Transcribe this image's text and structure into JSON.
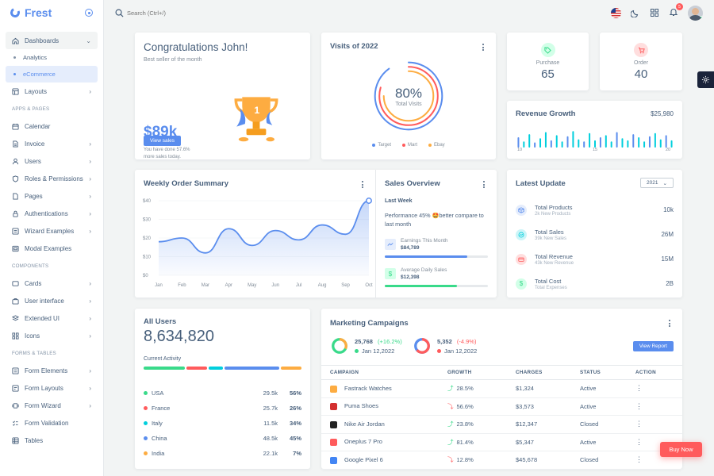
{
  "brand": {
    "name": "Frest"
  },
  "search": {
    "placeholder": "Search (Ctrl+/)"
  },
  "notifications": {
    "count": "5"
  },
  "sidebar": {
    "dashboards": "Dashboards",
    "analytics": "Analytics",
    "ecommerce": "eCommerce",
    "layouts": "Layouts",
    "head_apps": "APPS & PAGES",
    "calendar": "Calendar",
    "invoice": "Invoice",
    "users": "Users",
    "roles": "Roles & Permissions",
    "pages": "Pages",
    "auth": "Authentications",
    "wizard": "Wizard Examples",
    "modal": "Modal Examples",
    "head_components": "COMPONENTS",
    "cards": "Cards",
    "ui": "User interface",
    "extended": "Extended UI",
    "icons": "Icons",
    "head_forms": "FORMS & TABLES",
    "form_elements": "Form Elements",
    "form_layouts": "Form Layouts",
    "form_wizard": "Form Wizard",
    "form_validation": "Form Validation",
    "tables": "Tables"
  },
  "congrats": {
    "title": "Congratulations John!",
    "subtitle": "Best seller of the month",
    "amount": "$89k",
    "note1": "You have done 57.6%",
    "note2": "more sales today.",
    "button": "View sales"
  },
  "visits": {
    "title": "Visits of 2022",
    "percent": "80%",
    "label": "Total Visits",
    "legend": [
      {
        "name": "Target",
        "color": "#5a8dee"
      },
      {
        "name": "Mart",
        "color": "#ff5b5c"
      },
      {
        "name": "Ebay",
        "color": "#fdac41"
      }
    ]
  },
  "purchase": {
    "label": "Purchase",
    "value": "65"
  },
  "order": {
    "label": "Order",
    "value": "40"
  },
  "revenue": {
    "title": "Revenue Growth",
    "value": "$25,980",
    "ticks": [
      "10",
      "15",
      "20"
    ],
    "bars": [
      0.5,
      0.3,
      0.65,
      0.25,
      0.45,
      0.75,
      0.35,
      0.6,
      0.3,
      0.55,
      0.8,
      0.4,
      0.3,
      0.7,
      0.35,
      0.5,
      0.6,
      0.3,
      0.75,
      0.45,
      0.35,
      0.65,
      0.5,
      0.3,
      0.55,
      0.7,
      0.4,
      0.6,
      0.35
    ],
    "accent_colors": [
      "#00cfdd",
      "#5a8dee"
    ]
  },
  "weekly": {
    "title": "Weekly Order Summary",
    "chart_data": {
      "type": "area",
      "categories": [
        "Jan",
        "Feb",
        "Mar",
        "Apr",
        "May",
        "Jun",
        "Jul",
        "Aug",
        "Sep",
        "Oct"
      ],
      "values": [
        18,
        20,
        12,
        25,
        16,
        24,
        19,
        27,
        22,
        40
      ],
      "y_ticks": [
        "$40",
        "$30",
        "$20",
        "$10",
        "$0"
      ],
      "ylim": [
        0,
        40
      ]
    }
  },
  "sales_overview": {
    "title": "Sales Overview",
    "period": "Last Week",
    "text": "Performance 45% 🤩better compare to last month",
    "items": [
      {
        "label": "Earnings This Month",
        "value": "$84,789",
        "progress": 0.8,
        "color": "#5a8dee"
      },
      {
        "label": "Average Daily Sales",
        "value": "$12,398",
        "progress": 0.7,
        "color": "#39da8a"
      }
    ]
  },
  "latest": {
    "title": "Latest Update",
    "year": "2021",
    "items": [
      {
        "title": "Total Products",
        "sub": "2k New Products",
        "value": "10k",
        "color": "#5a8dee",
        "bg": "#e5edfc",
        "icon": "box-icon"
      },
      {
        "title": "Total Sales",
        "sub": "39k New Sales",
        "value": "26M",
        "color": "#00cfdd",
        "bg": "#ccf5f8",
        "icon": "chart-icon"
      },
      {
        "title": "Total Revenue",
        "sub": "43k New Revenue",
        "value": "15M",
        "color": "#ff5b5c",
        "bg": "#ffdede",
        "icon": "credit-card-icon"
      },
      {
        "title": "Total Cost",
        "sub": "Total Expenses",
        "value": "2B",
        "color": "#39da8a",
        "bg": "#d2ffe8",
        "icon": "dollar-icon"
      }
    ]
  },
  "all_users": {
    "title": "All Users",
    "total": "8,634,820",
    "activity": "Current Activity",
    "bars": [
      {
        "w": 0.3,
        "c": "#39da8a"
      },
      {
        "w": 0.15,
        "c": "#ff5b5c"
      },
      {
        "w": 0.1,
        "c": "#00cfdd"
      },
      {
        "w": 0.4,
        "c": "#5a8dee"
      },
      {
        "w": 0.15,
        "c": "#fdac41"
      }
    ],
    "rows": [
      {
        "country": "USA",
        "num": "29.5k",
        "pct": "56%",
        "color": "#39da8a"
      },
      {
        "country": "France",
        "num": "25.7k",
        "pct": "26%",
        "color": "#ff5b5c"
      },
      {
        "country": "Italy",
        "num": "11.5k",
        "pct": "34%",
        "color": "#00cfdd"
      },
      {
        "country": "China",
        "num": "48.5k",
        "pct": "45%",
        "color": "#5a8dee"
      },
      {
        "country": "India",
        "num": "22.1k",
        "pct": "7%",
        "color": "#fdac41"
      }
    ]
  },
  "marketing": {
    "title": "Marketing Campaigns",
    "stat1": {
      "value": "25,768",
      "change": "(+16.2%)",
      "date": "Jan 12,2022"
    },
    "stat2": {
      "value": "5,352",
      "change": "(-4.9%)",
      "date": "Jan 12,2022"
    },
    "button": "View Report",
    "columns": [
      "Campaign",
      "Growth",
      "Charges",
      "Status",
      "Action"
    ],
    "rows": [
      {
        "name": "Fastrack Watches",
        "growth": "28.5%",
        "dir": "up",
        "charges": "$1,324",
        "status": "Active",
        "logo": "#fdac41"
      },
      {
        "name": "Puma Shoes",
        "growth": "56.6%",
        "dir": "down",
        "charges": "$3,573",
        "status": "Active",
        "logo": "#d32f2f"
      },
      {
        "name": "Nike Air Jordan",
        "growth": "23.8%",
        "dir": "up",
        "charges": "$12,347",
        "status": "Closed",
        "logo": "#222222"
      },
      {
        "name": "Oneplus 7 Pro",
        "growth": "81.4%",
        "dir": "up",
        "charges": "$5,347",
        "status": "Active",
        "logo": "#ff5b5c"
      },
      {
        "name": "Google Pixel 6",
        "growth": "12.8%",
        "dir": "down",
        "charges": "$45,678",
        "status": "Closed",
        "logo": "#4285f4"
      }
    ]
  },
  "buy_now": "Buy Now"
}
